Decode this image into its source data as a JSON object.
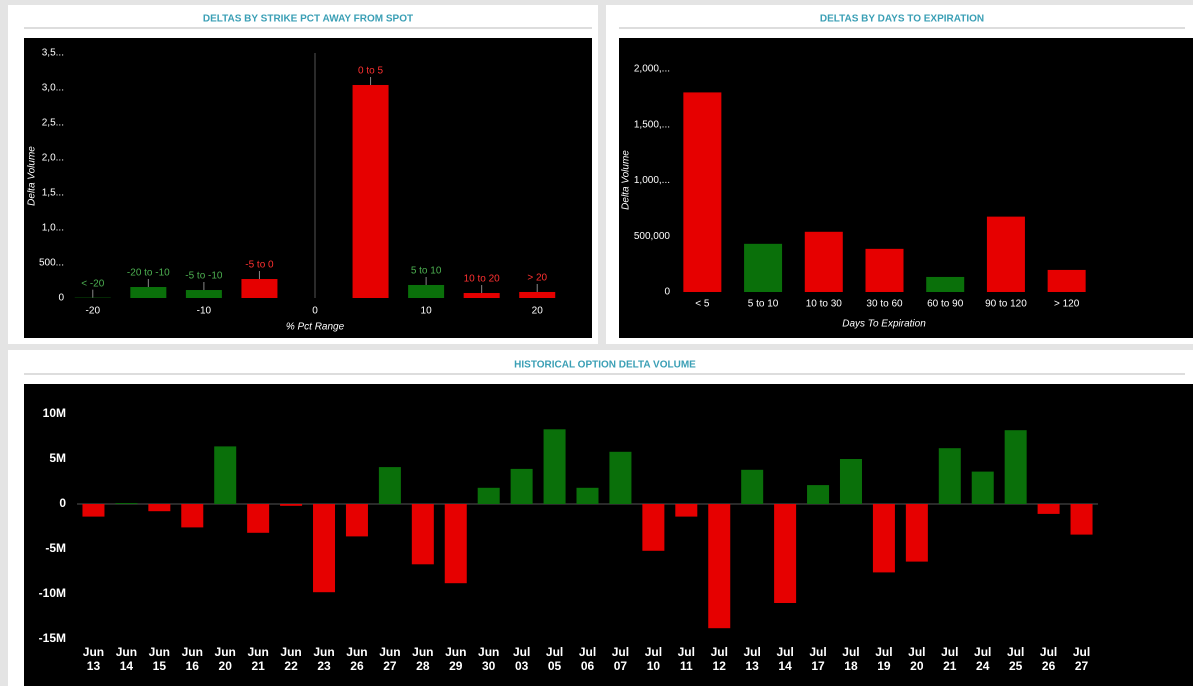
{
  "chart_data": [
    {
      "type": "bar",
      "title": "DELTAS BY STRIKE PCT AWAY FROM SPOT",
      "xlabel": "% Pct Range",
      "ylabel": "Delta Volume",
      "x": [
        -20,
        -15,
        -10,
        -5,
        5,
        10,
        15,
        20
      ],
      "categories": [
        "< -20",
        "-20 to -10",
        "-5 to -10",
        "-5 to 0",
        "0 to 5",
        "5 to 10",
        "10 to 20",
        "> 20"
      ],
      "values": [
        5,
        157,
        114,
        271,
        3043,
        186,
        71,
        86
      ],
      "colors": [
        "#0a700a",
        "#0a700a",
        "#0a700a",
        "#e60000",
        "#e60000",
        "#0a700a",
        "#e60000",
        "#e60000"
      ],
      "xlim": [
        -22.5,
        22.5
      ],
      "xticks": [
        -20,
        -10,
        0,
        10,
        20
      ],
      "ylim": [
        0,
        3500
      ],
      "yticks": [
        0,
        {
          "value": 500,
          "label": "500..."
        },
        {
          "value": 1000,
          "label": "1,0..."
        },
        {
          "value": 1500,
          "label": "1,5..."
        },
        {
          "value": 2000,
          "label": "2,0..."
        },
        {
          "value": 2500,
          "label": "2,5..."
        },
        {
          "value": 3000,
          "label": "3,0..."
        },
        {
          "value": 3500,
          "label": "3,5..."
        }
      ]
    },
    {
      "type": "bar",
      "title": "DELTAS BY DAYS TO EXPIRATION",
      "xlabel": "Days To Expiration",
      "ylabel": "Delta Volume",
      "categories": [
        "< 5",
        "5 to 10",
        "10 to 30",
        "30 to 60",
        "60 to 90",
        "90 to 120",
        "> 120"
      ],
      "values": [
        1790000,
        432000,
        540000,
        387000,
        135000,
        676000,
        198000
      ],
      "colors": [
        "#e60000",
        "#0a700a",
        "#e60000",
        "#e60000",
        "#0a700a",
        "#e60000",
        "#e60000"
      ],
      "ylim": [
        0,
        2000000
      ],
      "yticks": [
        0,
        {
          "value": 500000,
          "label": "500,000"
        },
        {
          "value": 1000000,
          "label": "1,000,..."
        },
        {
          "value": 1500000,
          "label": "1,500,..."
        },
        {
          "value": 2000000,
          "label": "2,000,..."
        }
      ]
    },
    {
      "type": "bar",
      "title": "HISTORICAL OPTION DELTA VOLUME",
      "categories": [
        [
          "Jun",
          "13"
        ],
        [
          "Jun",
          "14"
        ],
        [
          "Jun",
          "15"
        ],
        [
          "Jun",
          "16"
        ],
        [
          "Jun",
          "20"
        ],
        [
          "Jun",
          "21"
        ],
        [
          "Jun",
          "22"
        ],
        [
          "Jun",
          "23"
        ],
        [
          "Jun",
          "26"
        ],
        [
          "Jun",
          "27"
        ],
        [
          "Jun",
          "28"
        ],
        [
          "Jun",
          "29"
        ],
        [
          "Jun",
          "30"
        ],
        [
          "Jul",
          "03"
        ],
        [
          "Jul",
          "05"
        ],
        [
          "Jul",
          "06"
        ],
        [
          "Jul",
          "07"
        ],
        [
          "Jul",
          "10"
        ],
        [
          "Jul",
          "11"
        ],
        [
          "Jul",
          "12"
        ],
        [
          "Jul",
          "13"
        ],
        [
          "Jul",
          "14"
        ],
        [
          "Jul",
          "17"
        ],
        [
          "Jul",
          "18"
        ],
        [
          "Jul",
          "19"
        ],
        [
          "Jul",
          "20"
        ],
        [
          "Jul",
          "21"
        ],
        [
          "Jul",
          "24"
        ],
        [
          "Jul",
          "25"
        ],
        [
          "Jul",
          "26"
        ],
        [
          "Jul",
          "27"
        ]
      ],
      "values": [
        -1400000,
        100000,
        -800000,
        -2600000,
        6400000,
        -3200000,
        -200000,
        -9800000,
        -3600000,
        4100000,
        -6700000,
        -8800000,
        1800000,
        3900000,
        8300000,
        1800000,
        5800000,
        -5200000,
        -1400000,
        -13800000,
        3800000,
        -11000000,
        2100000,
        5000000,
        -7600000,
        -6400000,
        6200000,
        3600000,
        8200000,
        -1100000,
        -3400000
      ],
      "color_positive": "#0a700a",
      "color_negative": "#e60000",
      "ylim": [
        -15000000,
        10000000
      ],
      "yticks": [
        {
          "value": 10000000,
          "label": "10M"
        },
        {
          "value": 5000000,
          "label": "5M"
        },
        0,
        {
          "value": -5000000,
          "label": "-5M"
        },
        {
          "value": -10000000,
          "label": "-10M"
        },
        {
          "value": -15000000,
          "label": "-15M"
        }
      ]
    }
  ]
}
